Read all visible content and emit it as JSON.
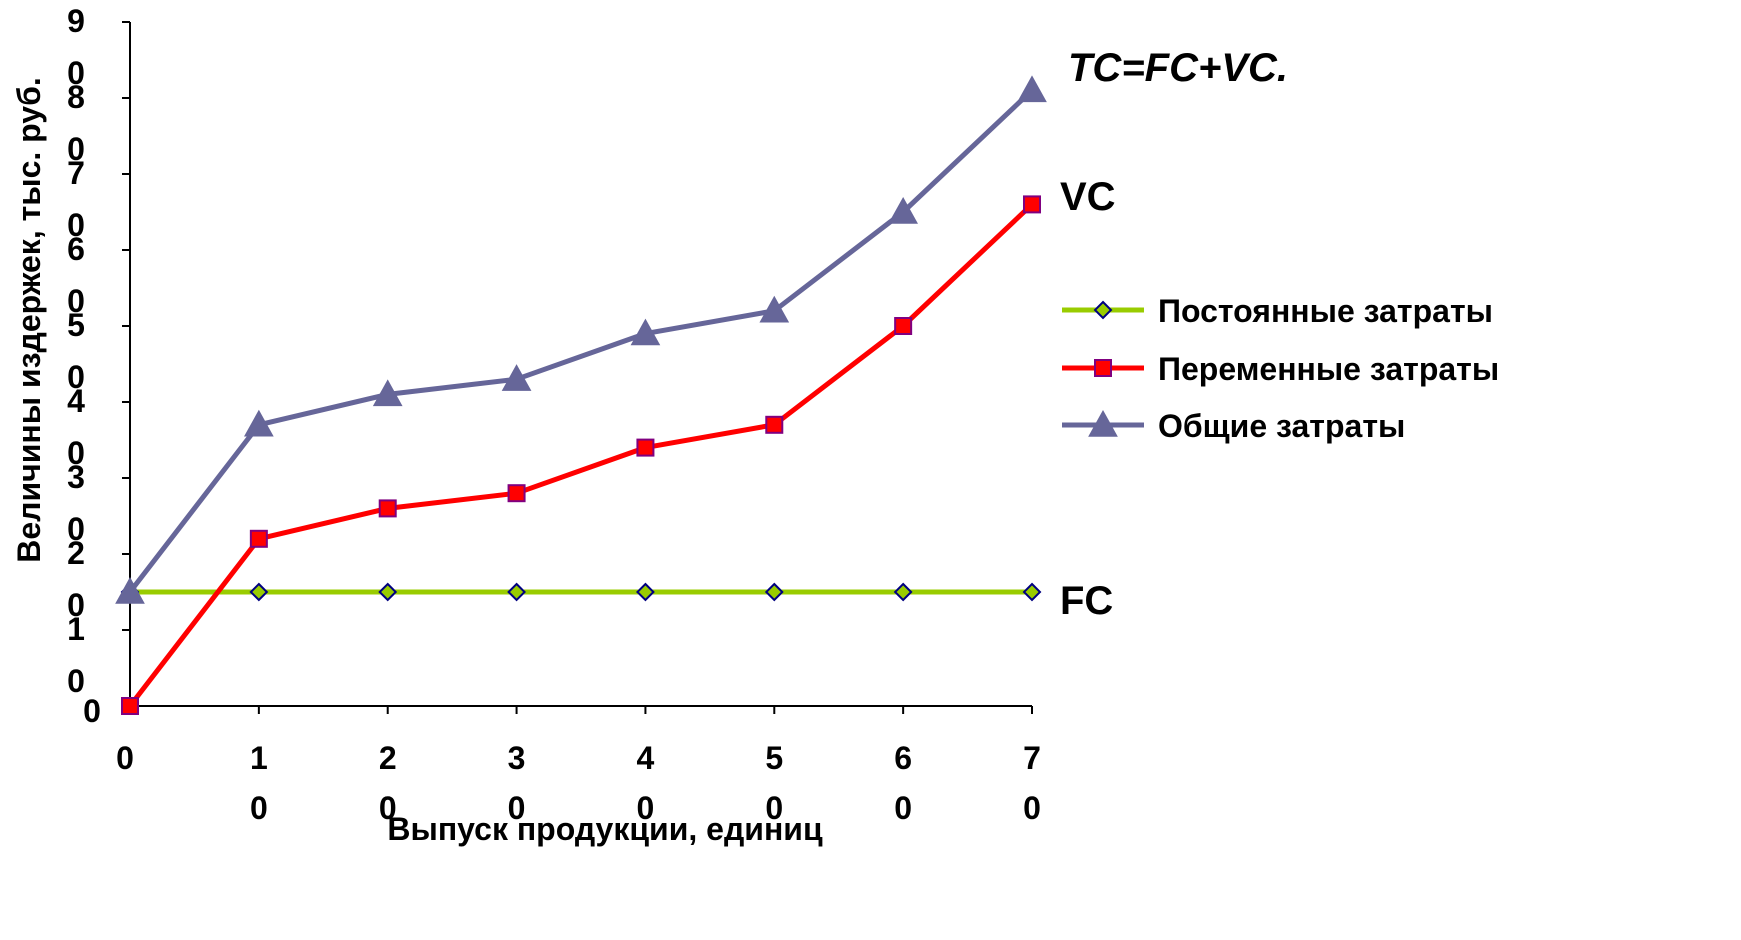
{
  "chart_data": {
    "type": "line",
    "x": [
      0,
      10,
      20,
      30,
      40,
      50,
      60,
      70
    ],
    "xlim": [
      0,
      70
    ],
    "ylim": [
      0,
      90
    ],
    "xlabel": "Выпуск продукции, единиц",
    "ylabel": "Величины издержек, тыс. руб.",
    "x_tick_values": [
      0,
      10,
      20,
      30,
      40,
      50,
      60,
      70
    ],
    "y_tick_values": [
      0,
      10,
      20,
      30,
      40,
      50,
      60,
      70,
      80,
      90
    ],
    "x_tick_labels": [
      "0",
      "1\n0",
      "2\n0",
      "3\n0",
      "4\n0",
      "5\n0",
      "6\n0",
      "7\n0"
    ],
    "y_tick_labels": [
      "0",
      "1\n0",
      "2\n0",
      "3\n0",
      "4\n0",
      "5\n0",
      "6\n0",
      "7\n0",
      "8\n0",
      "9\n0"
    ],
    "grid": false,
    "legend_position": "right",
    "series": [
      {
        "key": "fc",
        "name": "Постоянные затраты",
        "color": "#99cc00",
        "marker": "diamond",
        "marker_fill": "#99cc00",
        "marker_stroke": "#000080",
        "values": [
          15,
          15,
          15,
          15,
          15,
          15,
          15,
          15
        ]
      },
      {
        "key": "vc",
        "name": "Переменные затраты",
        "color": "#ff0000",
        "marker": "square",
        "marker_fill": "#ff0000",
        "marker_stroke": "#800080",
        "values": [
          0,
          22,
          26,
          28,
          34,
          37,
          50,
          66
        ]
      },
      {
        "key": "tc",
        "name": "Общие затраты",
        "color": "#666699",
        "marker": "triangle",
        "marker_fill": "#666699",
        "marker_stroke": "#666699",
        "values": [
          15,
          37,
          41,
          43,
          49,
          52,
          65,
          81
        ]
      }
    ],
    "annotations": [
      {
        "text": "TC=FC+VC.",
        "italic": true
      },
      {
        "text": "VC",
        "italic": false
      },
      {
        "text": "FC",
        "italic": false
      }
    ]
  }
}
